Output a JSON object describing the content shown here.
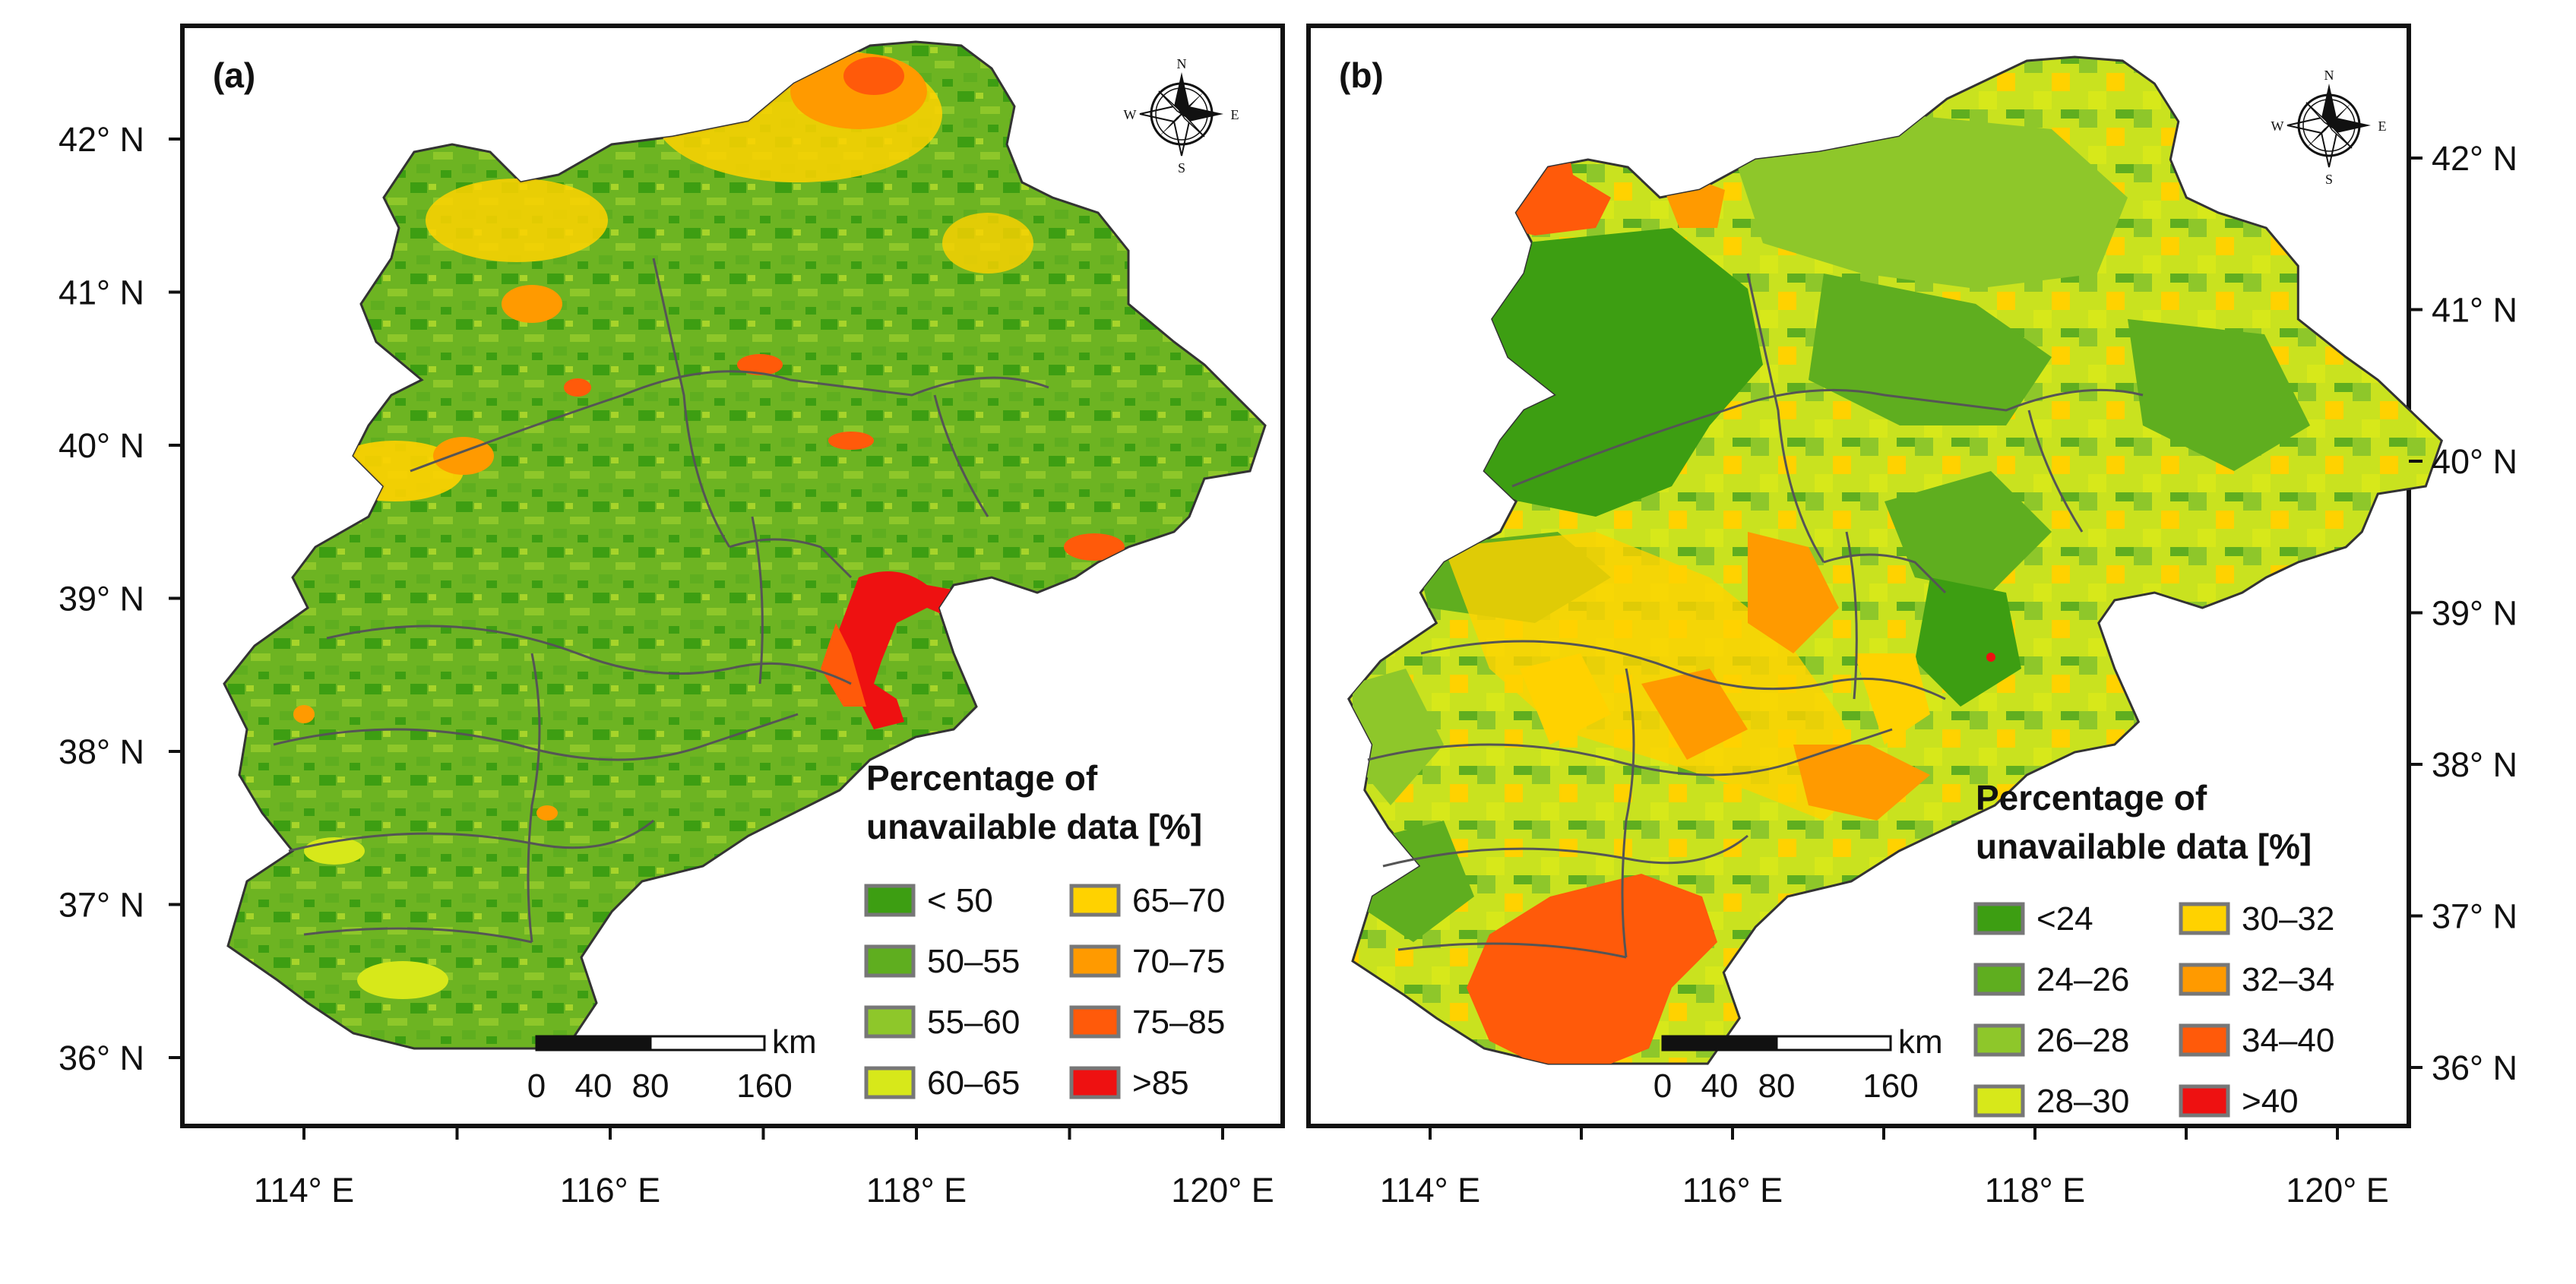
{
  "figure": {
    "bottom_axis": {
      "label_a": [
        "114° E",
        "116° E",
        "118° E",
        "120° E"
      ],
      "label_b": [
        "114° E",
        "116° E",
        "118° E",
        "120° E"
      ]
    },
    "left_axis": [
      "42° N",
      "41° N",
      "40° N",
      "39° N",
      "38° N",
      "37° N",
      "36° N"
    ],
    "right_axis": [
      "42° N",
      "41° N",
      "40° N",
      "39° N",
      "38° N",
      "37° N",
      "36° N"
    ]
  },
  "panels": [
    {
      "label": "(a)",
      "legend": {
        "title_line1": "Percentage of",
        "title_line2": "unavailable data [%]",
        "classes": [
          {
            "label": "< 50",
            "color": "#3d9e12"
          },
          {
            "label": "50–55",
            "color": "#5fae1f"
          },
          {
            "label": "55–60",
            "color": "#8ec72a"
          },
          {
            "label": "60–65",
            "color": "#d7e81a"
          },
          {
            "label": "65–70",
            "color": "#ffd200"
          },
          {
            "label": "70–75",
            "color": "#ff9a00"
          },
          {
            "label": "75–85",
            "color": "#ff5a0a"
          },
          {
            "label": ">85",
            "color": "#ee1111"
          }
        ]
      },
      "scale_bar": {
        "unit": "km",
        "ticks": [
          "0",
          "40",
          "80",
          "160"
        ]
      },
      "compass": {
        "n": "N",
        "s": "S",
        "e": "E",
        "w": "W"
      }
    },
    {
      "label": "(b)",
      "legend": {
        "title_line1": "Percentage of",
        "title_line2": "unavailable data [%]",
        "classes": [
          {
            "label": "<24",
            "color": "#3d9e12"
          },
          {
            "label": "24–26",
            "color": "#5fae1f"
          },
          {
            "label": "26–28",
            "color": "#8ec72a"
          },
          {
            "label": "28–30",
            "color": "#d7e81a"
          },
          {
            "label": "30–32",
            "color": "#ffd200"
          },
          {
            "label": "32–34",
            "color": "#ff9a00"
          },
          {
            "label": "34–40",
            "color": "#ff5a0a"
          },
          {
            "label": ">40",
            "color": "#ee1111"
          }
        ]
      },
      "scale_bar": {
        "unit": "km",
        "ticks": [
          "0",
          "40",
          "80",
          "160"
        ]
      },
      "compass": {
        "n": "N",
        "s": "S",
        "e": "E",
        "w": "W"
      }
    }
  ]
}
